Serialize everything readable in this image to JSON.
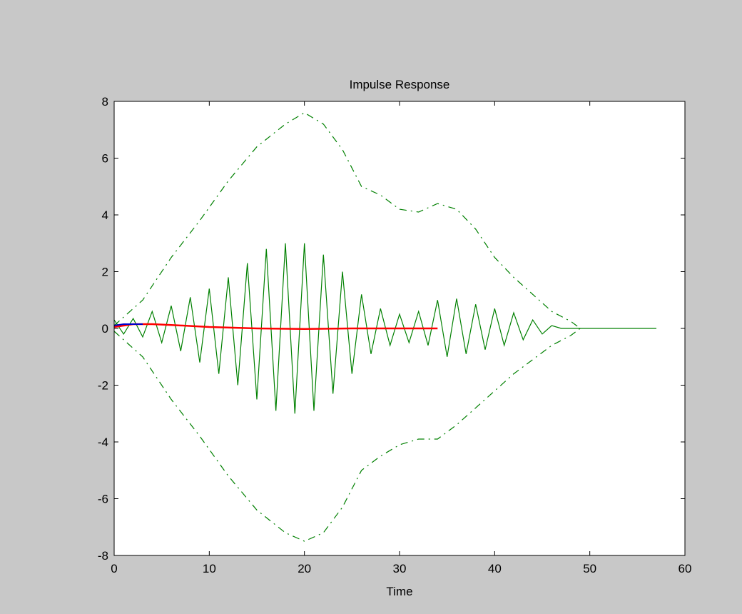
{
  "window": {
    "background": "#c8c8c8",
    "axes_background": "#ffffff"
  },
  "chart_data": {
    "type": "line",
    "title": "Impulse Response",
    "xlabel": "Time",
    "ylabel": "",
    "xlim": [
      0,
      60
    ],
    "ylim": [
      -8,
      8
    ],
    "xticks": [
      0,
      10,
      20,
      30,
      40,
      50,
      60
    ],
    "yticks": [
      -8,
      -6,
      -4,
      -2,
      0,
      2,
      4,
      6,
      8
    ],
    "xtick_labels": [
      "0",
      "10",
      "20",
      "30",
      "40",
      "50",
      "60"
    ],
    "ytick_labels": [
      "-8",
      "-6",
      "-4",
      "-2",
      "0",
      "2",
      "4",
      "6",
      "8"
    ],
    "grid": false,
    "legend": false,
    "series": [
      {
        "color": "#008000",
        "style": "solid",
        "t_start": 0,
        "t_step": 1,
        "values": [
          0.3,
          -0.2,
          0.35,
          -0.3,
          0.6,
          -0.5,
          0.8,
          -0.8,
          1.1,
          -1.2,
          1.4,
          -1.6,
          1.8,
          -2.0,
          2.3,
          -2.5,
          2.8,
          -2.9,
          3.0,
          -3.0,
          3.0,
          -2.9,
          2.6,
          -2.3,
          2.0,
          -1.6,
          1.2,
          -0.9,
          0.7,
          -0.6,
          0.5,
          -0.5,
          0.6,
          -0.6,
          1.0,
          -1.0,
          1.05,
          -0.9,
          0.85,
          -0.75,
          0.7,
          -0.6,
          0.55,
          -0.4,
          0.3,
          -0.2,
          0.1,
          0.0,
          0.0
        ],
        "tail": {
          "x": [
            48,
            57
          ],
          "y": [
            0,
            0
          ]
        }
      },
      {
        "color": "#008000",
        "style": "dashdot",
        "name_hint": "upper-envelope",
        "x": [
          0,
          3,
          6,
          9,
          12,
          15,
          18,
          20,
          22,
          24,
          26,
          28,
          30,
          32,
          34,
          36,
          38,
          40,
          42,
          44,
          46,
          48,
          49
        ],
        "y": [
          0.1,
          1.0,
          2.5,
          3.8,
          5.2,
          6.4,
          7.2,
          7.6,
          7.2,
          6.3,
          5.0,
          4.7,
          4.2,
          4.1,
          4.4,
          4.2,
          3.5,
          2.5,
          1.8,
          1.2,
          0.6,
          0.25,
          0.0
        ]
      },
      {
        "color": "#008000",
        "style": "dashdot",
        "name_hint": "lower-envelope",
        "x": [
          0,
          3,
          6,
          9,
          12,
          15,
          18,
          20,
          22,
          24,
          26,
          28,
          30,
          32,
          34,
          36,
          38,
          40,
          42,
          44,
          46,
          48,
          49
        ],
        "y": [
          -0.1,
          -1.0,
          -2.5,
          -3.8,
          -5.2,
          -6.4,
          -7.2,
          -7.5,
          -7.2,
          -6.3,
          -5.0,
          -4.5,
          -4.1,
          -3.9,
          -3.9,
          -3.4,
          -2.8,
          -2.2,
          -1.6,
          -1.1,
          -0.6,
          -0.25,
          0.0
        ]
      },
      {
        "color": "#ff0000",
        "style": "solid",
        "x": [
          0,
          2,
          4,
          6,
          10,
          15,
          20,
          25,
          30,
          34
        ],
        "y": [
          0.05,
          0.15,
          0.15,
          0.12,
          0.05,
          0.0,
          -0.02,
          0.0,
          0.0,
          0.0
        ]
      },
      {
        "color": "#0000cc",
        "style": "solid",
        "x": [
          0,
          1,
          2,
          3
        ],
        "y": [
          0.1,
          0.15,
          0.15,
          0.15
        ]
      }
    ]
  }
}
